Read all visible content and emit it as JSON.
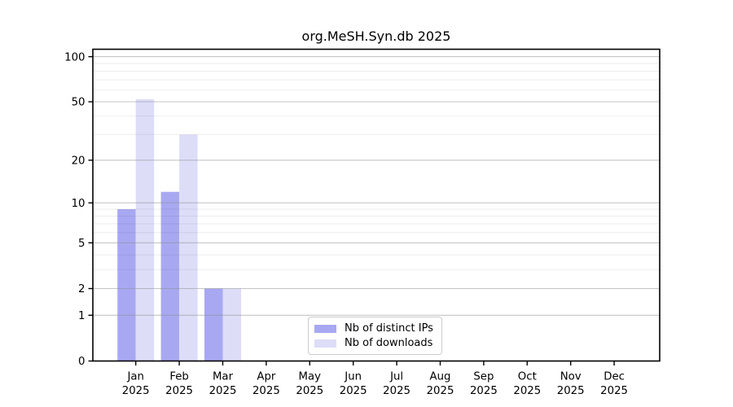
{
  "chart_data": {
    "type": "bar",
    "title": "org.MeSH.Syn.db 2025",
    "categories": [
      "Jan 2025",
      "Feb 2025",
      "Mar 2025",
      "Apr 2025",
      "May 2025",
      "Jun 2025",
      "Jul 2025",
      "Aug 2025",
      "Sep 2025",
      "Oct 2025",
      "Nov 2025",
      "Dec 2025"
    ],
    "x_tick_months": [
      "Jan",
      "Feb",
      "Mar",
      "Apr",
      "May",
      "Jun",
      "Jul",
      "Aug",
      "Sep",
      "Oct",
      "Nov",
      "Dec"
    ],
    "x_tick_year": "2025",
    "series": [
      {
        "name": "Nb of distinct IPs",
        "color": "#a8a8f2",
        "values": [
          9,
          12,
          2,
          0,
          0,
          0,
          0,
          0,
          0,
          0,
          0,
          0
        ]
      },
      {
        "name": "Nb of downloads",
        "color": "#ddddf8",
        "values": [
          52,
          30,
          2,
          0,
          0,
          0,
          0,
          0,
          0,
          0,
          0,
          0
        ]
      }
    ],
    "y_scale": "log1p",
    "y_major_ticks": [
      0,
      1,
      2,
      5,
      10,
      20,
      50,
      100
    ],
    "y_minor_ticks": [
      3,
      4,
      6,
      7,
      8,
      9,
      30,
      40,
      60,
      70,
      80,
      90
    ],
    "ylim": [
      0,
      112
    ],
    "xlabel": "",
    "ylabel": "",
    "grid": true,
    "grid_on_top": true,
    "legend_position": "bottom-center-inside",
    "colors": {
      "major_gridline": "#8c8c8c",
      "minor_gridline": "#ebebeb",
      "axis_frame": "#000000",
      "legend_border": "#cccccc"
    }
  }
}
